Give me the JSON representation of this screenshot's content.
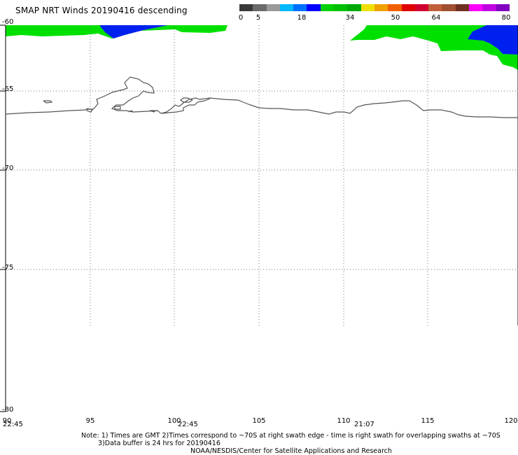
{
  "title": "SMAP NRT Winds  20190416 descending",
  "colorbar": {
    "labels": [
      {
        "text": "0"
      },
      {
        "text": "5"
      },
      {
        "text": "18"
      },
      {
        "text": "34"
      },
      {
        "text": "50"
      },
      {
        "text": "64"
      },
      {
        "text": "80"
      }
    ],
    "colors": [
      "#3a3a3a",
      "#6a6a6a",
      "#9a9a9a",
      "#00b8ff",
      "#0070ff",
      "#0000ff",
      "#00d000",
      "#00c000",
      "#00a800",
      "#f0e000",
      "#f0a000",
      "#f06000",
      "#e00000",
      "#d00030",
      "#c0603a",
      "#a05030",
      "#703020",
      "#ff00ff",
      "#c000e0",
      "#8000c0"
    ]
  },
  "map": {
    "latitudes": [
      {
        "label": "-60"
      },
      {
        "label": "-65"
      },
      {
        "label": "-70"
      },
      {
        "label": "-75"
      },
      {
        "label": "-80"
      }
    ],
    "longitudes": [
      {
        "label": "90"
      },
      {
        "label": "95"
      },
      {
        "label": "100"
      },
      {
        "label": "105"
      },
      {
        "label": "110"
      },
      {
        "label": "115"
      },
      {
        "label": "120"
      }
    ],
    "swath_times": [
      {
        "label": "22:45"
      },
      {
        "label": "22:45"
      },
      {
        "label": "21:07"
      }
    ],
    "wind_colors": {
      "tropical_depression": "#00e000",
      "moderate": "#0020f0"
    }
  },
  "note_line1": "Note: 1) Times are GMT 2)Times correspond to ~70S at right swath edge - time is right swath for overlapping swaths at ~70S",
  "note_line2": "3)Data buffer is 24 hrs for 20190416",
  "credit": "NOAA/NESDIS/Center for Satellite Applications and Research"
}
